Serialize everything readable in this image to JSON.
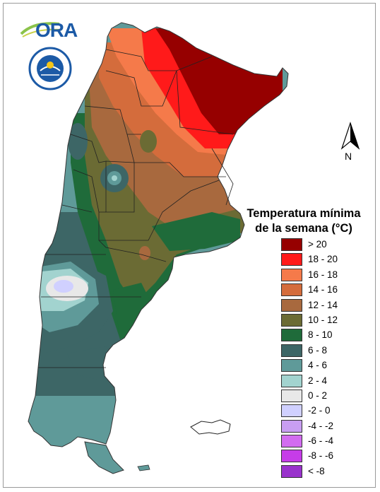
{
  "logo": {
    "text": "ORA",
    "agency_seal": "SERVICIO METEOROLOGICO NACIONAL · ARGENTINA"
  },
  "north_label": "N",
  "legend": {
    "title_line1": "Temperatura mínima",
    "title_line2": "de la semana (°C)",
    "classes": [
      {
        "label": "> 20",
        "color": "#960000"
      },
      {
        "label": "18 - 20",
        "color": "#ff1a1a"
      },
      {
        "label": "16 - 18",
        "color": "#f57a4a"
      },
      {
        "label": "14 - 16",
        "color": "#d46c3c"
      },
      {
        "label": "12 - 14",
        "color": "#a8693e"
      },
      {
        "label": "10 - 12",
        "color": "#6b6b34"
      },
      {
        "label": "8 - 10",
        "color": "#1f6b3a"
      },
      {
        "label": "6 - 8",
        "color": "#3d6666"
      },
      {
        "label": "4 - 6",
        "color": "#5f9a99"
      },
      {
        "label": "2 - 4",
        "color": "#a2d3cf"
      },
      {
        "label": "0 - 2",
        "color": "#e8e8e8"
      },
      {
        "label": "-2 - 0",
        "color": "#d0d0ff"
      },
      {
        "label": "-4 - -2",
        "color": "#c89ef2"
      },
      {
        "label": "-6 - -4",
        "color": "#d26cf0"
      },
      {
        "label": "-8 - -6",
        "color": "#c63ce8"
      },
      {
        "label": "< -8",
        "color": "#9932cc"
      }
    ]
  }
}
